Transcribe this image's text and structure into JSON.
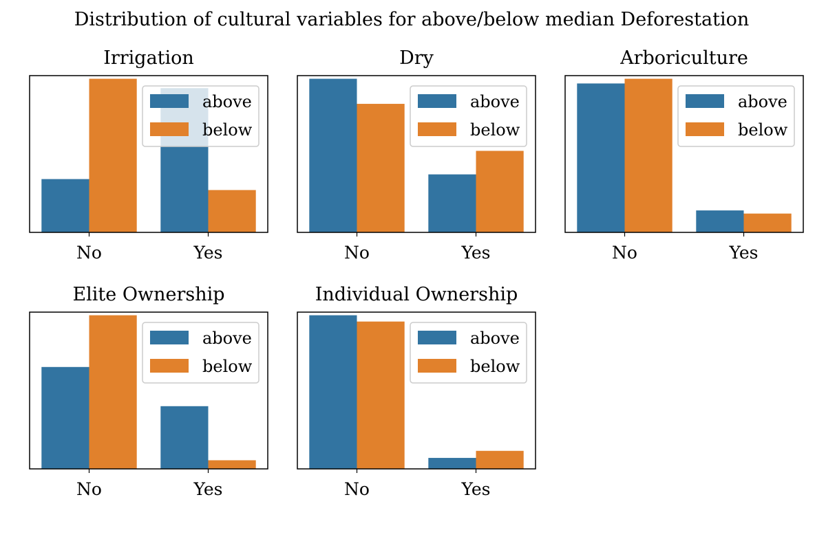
{
  "figure": {
    "title": "Distribution of cultural variables for above/below median Deforestation"
  },
  "colors": {
    "above": "#3274a1",
    "below": "#e1812c"
  },
  "chart_data": [
    {
      "type": "bar",
      "title": "Irrigation",
      "categories": [
        "No",
        "Yes"
      ],
      "series": [
        {
          "name": "above",
          "values": [
            0.34,
            0.92
          ]
        },
        {
          "name": "below",
          "values": [
            0.98,
            0.27
          ]
        }
      ],
      "ylim": [
        0,
        1
      ],
      "legend": "top-right",
      "grid": false
    },
    {
      "type": "bar",
      "title": "Dry",
      "categories": [
        "No",
        "Yes"
      ],
      "series": [
        {
          "name": "above",
          "values": [
            0.98,
            0.37
          ]
        },
        {
          "name": "below",
          "values": [
            0.82,
            0.52
          ]
        }
      ],
      "ylim": [
        0,
        1
      ],
      "legend": "top-right",
      "grid": false
    },
    {
      "type": "bar",
      "title": "Arboriculture",
      "categories": [
        "No",
        "Yes"
      ],
      "series": [
        {
          "name": "above",
          "values": [
            0.95,
            0.14
          ]
        },
        {
          "name": "below",
          "values": [
            0.98,
            0.12
          ]
        }
      ],
      "ylim": [
        0,
        1
      ],
      "legend": "top-right",
      "grid": false
    },
    {
      "type": "bar",
      "title": "Elite Ownership",
      "categories": [
        "No",
        "Yes"
      ],
      "series": [
        {
          "name": "above",
          "values": [
            0.65,
            0.4
          ]
        },
        {
          "name": "below",
          "values": [
            0.98,
            0.055
          ]
        }
      ],
      "ylim": [
        0,
        1
      ],
      "legend": "top-right",
      "grid": false
    },
    {
      "type": "bar",
      "title": "Individual Ownership",
      "categories": [
        "No",
        "Yes"
      ],
      "series": [
        {
          "name": "above",
          "values": [
            0.98,
            0.07
          ]
        },
        {
          "name": "below",
          "values": [
            0.94,
            0.115
          ]
        }
      ],
      "ylim": [
        0,
        1
      ],
      "legend": "top-right",
      "grid": false
    }
  ]
}
